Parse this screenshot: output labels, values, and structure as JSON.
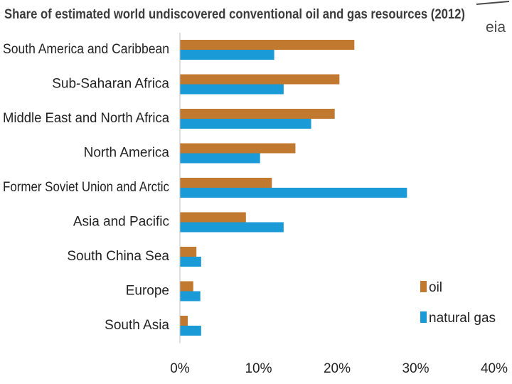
{
  "branding": {
    "logo_text": "eia"
  },
  "chart_data": {
    "type": "bar",
    "orientation": "horizontal",
    "title": "Share of estimated world undiscovered conventional oil and gas resources (2012)",
    "xlabel": "",
    "ylabel": "",
    "categories": [
      "South America and Caribbean",
      "Sub-Saharan Africa",
      "Middle East and North Africa",
      "North America",
      "Former Soviet Union and Arctic",
      "Asia and Pacific",
      "South China Sea",
      "Europe",
      "South Asia"
    ],
    "series": [
      {
        "name": "oil",
        "color": "#c0792e",
        "values": [
          22.2,
          20.3,
          19.7,
          14.7,
          11.7,
          8.4,
          2.1,
          1.7,
          1.0
        ]
      },
      {
        "name": "natural gas",
        "color": "#1a9ad6",
        "values": [
          12.0,
          13.2,
          16.7,
          10.2,
          28.9,
          13.2,
          2.7,
          2.6,
          2.7
        ]
      }
    ],
    "xlim": [
      0,
      40
    ],
    "xticks": [
      "0%",
      "10%",
      "20%",
      "30%",
      "40%"
    ],
    "grid": false,
    "legend_position": "bottom-right"
  }
}
